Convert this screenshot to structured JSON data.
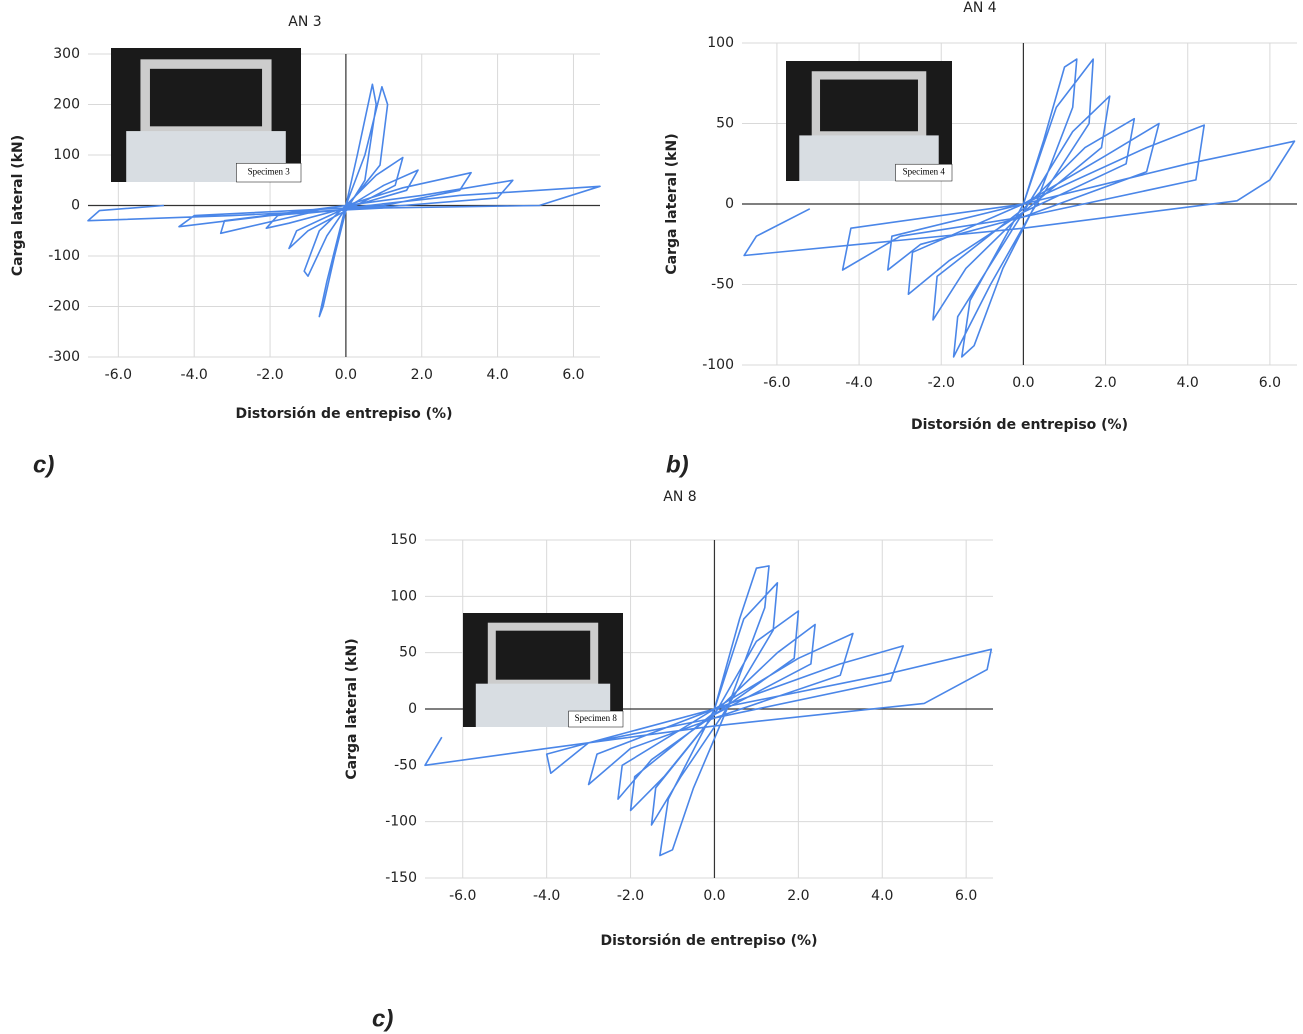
{
  "chart_data": [
    {
      "type": "line",
      "title": "AN 3",
      "x_label": "Distorsión de entrepiso (%)",
      "y_label": "Carga lateral (kN)",
      "inset_label": "Specimen 3",
      "panel_label": "c)",
      "color": "#4a86e8",
      "grid": true,
      "xlim": [
        -6.8,
        6.7
      ],
      "ylim": [
        -300,
        300
      ],
      "xticks": [
        {
          "value": -6,
          "label": "-6.0"
        },
        {
          "value": -4,
          "label": "-4.0"
        },
        {
          "value": -2,
          "label": "-2.0"
        },
        {
          "value": 0,
          "label": "0.0"
        },
        {
          "value": 2,
          "label": "2.0"
        },
        {
          "value": 4,
          "label": "4.0"
        },
        {
          "value": 6,
          "label": "6.0"
        }
      ],
      "yticks": [
        300,
        200,
        100,
        0,
        -100,
        -200,
        -300
      ],
      "x": [
        0,
        0.3,
        0.7,
        0.8,
        0.5,
        0,
        -0.3,
        -0.6,
        -0.7,
        -0.5,
        0,
        0.5,
        0.95,
        1.1,
        0.9,
        0,
        -0.5,
        -1.0,
        -1.1,
        -0.7,
        0,
        0.8,
        1.5,
        1.3,
        0,
        -1.0,
        -1.5,
        -1.3,
        0,
        1.0,
        1.9,
        1.6,
        0,
        -1.5,
        -2.1,
        -1.8,
        0,
        1.5,
        3.3,
        3.0,
        1.0,
        -1.0,
        -3.3,
        -3.2,
        0,
        2,
        4.4,
        4.0,
        1,
        -2,
        -4.4,
        -4.0,
        0,
        3,
        6.7,
        5.1,
        1,
        -3,
        -6.8,
        -6.5,
        -4.8
      ],
      "values": [
        0,
        100,
        240,
        200,
        50,
        -10,
        -100,
        -200,
        -220,
        -150,
        0,
        100,
        235,
        200,
        80,
        -5,
        -60,
        -140,
        -130,
        -50,
        0,
        60,
        95,
        40,
        -10,
        -50,
        -85,
        -50,
        -5,
        40,
        70,
        30,
        -5,
        -35,
        -45,
        -20,
        0,
        35,
        65,
        30,
        0,
        -15,
        -55,
        -30,
        0,
        20,
        50,
        15,
        -3,
        -20,
        -42,
        -20,
        -5,
        20,
        38,
        0,
        -5,
        -20,
        -30,
        -10,
        0
      ]
    },
    {
      "type": "line",
      "title": "AN 4",
      "x_label": "Distorsión de entrepiso (%)",
      "y_label": "Carga lateral (kN)",
      "inset_label": "Specimen 4",
      "panel_label": "b)",
      "color": "#4a86e8",
      "grid": true,
      "xlim": [
        -6.85,
        6.66
      ],
      "ylim": [
        -100,
        100
      ],
      "xticks": [
        {
          "value": -6,
          "label": "-6.0"
        },
        {
          "value": -4,
          "label": "-4.0"
        },
        {
          "value": -2,
          "label": "-2.0"
        },
        {
          "value": 0,
          "label": "0.0"
        },
        {
          "value": 2,
          "label": "2.0"
        },
        {
          "value": 4,
          "label": "4.0"
        },
        {
          "value": 6,
          "label": "6.0"
        }
      ],
      "yticks": [
        100,
        50,
        0,
        -50,
        -100
      ],
      "x": [
        0,
        0.5,
        1.0,
        1.3,
        1.2,
        0.3,
        -0.5,
        -1.2,
        -1.5,
        -1.3,
        0,
        0.8,
        1.7,
        1.6,
        0.2,
        -0.8,
        -1.7,
        -1.6,
        0,
        1.2,
        2.1,
        1.9,
        0,
        -1.4,
        -2.2,
        -2.1,
        0,
        1.5,
        2.7,
        2.5,
        0,
        -1.8,
        -2.8,
        -2.7,
        0,
        2,
        3.3,
        3.0,
        0,
        -2.5,
        -3.3,
        -3.2,
        0,
        3,
        4.4,
        4.2,
        0,
        -3,
        -4.4,
        -4.2,
        0,
        4,
        6.6,
        6.0,
        5.2,
        0,
        -4,
        -6.8,
        -6.5,
        -5.2
      ],
      "values": [
        0,
        40,
        85,
        90,
        60,
        0,
        -40,
        -88,
        -95,
        -60,
        0,
        60,
        90,
        50,
        -5,
        -50,
        -95,
        -70,
        -5,
        45,
        67,
        35,
        -5,
        -40,
        -72,
        -45,
        -3,
        35,
        53,
        25,
        -5,
        -35,
        -56,
        -30,
        0,
        30,
        50,
        20,
        -8,
        -25,
        -41,
        -20,
        0,
        35,
        49,
        15,
        -8,
        -20,
        -41,
        -15,
        0,
        25,
        39,
        15,
        2,
        -15,
        -25,
        -32,
        -20,
        -3
      ]
    },
    {
      "type": "line",
      "title": "AN 8",
      "x_label": "Distorsión de entrepiso (%)",
      "y_label": "Carga lateral (kN)",
      "inset_label": "Specimen 8",
      "panel_label": "c)",
      "color": "#4a86e8",
      "grid": true,
      "xlim": [
        -6.9,
        6.64
      ],
      "ylim": [
        -150,
        150
      ],
      "xticks": [
        {
          "value": -6,
          "label": "-6.0"
        },
        {
          "value": -4,
          "label": "-4.0"
        },
        {
          "value": -2,
          "label": "-2.0"
        },
        {
          "value": 0,
          "label": "0.0"
        },
        {
          "value": 2,
          "label": "2.0"
        },
        {
          "value": 4,
          "label": "4.0"
        },
        {
          "value": 6,
          "label": "6.0"
        }
      ],
      "yticks": [
        150,
        100,
        50,
        0,
        -50,
        -100,
        -150
      ],
      "x": [
        0,
        0.6,
        1.0,
        1.3,
        1.2,
        0.3,
        -0.5,
        -1.0,
        -1.3,
        -1.1,
        0,
        0.7,
        1.5,
        1.4,
        0.2,
        -0.8,
        -1.5,
        -1.4,
        0,
        1.0,
        2.0,
        1.9,
        0,
        -1.2,
        -2.0,
        -1.9,
        0,
        1.5,
        2.4,
        2.3,
        0,
        -1.5,
        -2.3,
        -2.2,
        0,
        2,
        3.3,
        3.0,
        0,
        -2,
        -3.0,
        -2.8,
        0,
        3,
        4.5,
        4.2,
        0,
        -3,
        -3.9,
        -4.0,
        0,
        4,
        6.6,
        6.5,
        5.0,
        0,
        -4,
        -6.9,
        -6.5
      ],
      "values": [
        0,
        80,
        125,
        127,
        90,
        0,
        -70,
        -125,
        -130,
        -80,
        0,
        80,
        112,
        70,
        -5,
        -60,
        -103,
        -70,
        -5,
        60,
        87,
        45,
        -5,
        -60,
        -90,
        -60,
        -3,
        50,
        75,
        40,
        -5,
        -45,
        -80,
        -50,
        0,
        45,
        67,
        30,
        -8,
        -35,
        -67,
        -40,
        0,
        40,
        56,
        25,
        -8,
        -30,
        -57,
        -40,
        0,
        30,
        53,
        35,
        5,
        -15,
        -35,
        -50,
        -25
      ]
    }
  ]
}
